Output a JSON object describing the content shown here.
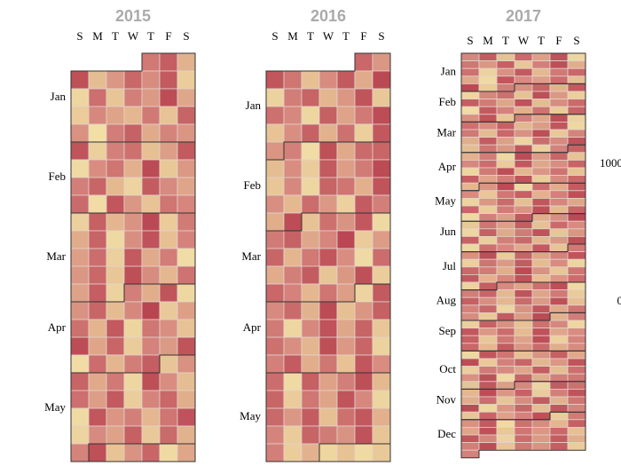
{
  "chart_data": {
    "type": "calendar",
    "weekdays": [
      "S",
      "M",
      "T",
      "W",
      "T",
      "F",
      "S"
    ],
    "months": [
      "Jan",
      "Feb",
      "Mar",
      "Apr",
      "May",
      "Jun",
      "Jul",
      "Aug",
      "Sep",
      "Oct",
      "Nov",
      "Dec"
    ],
    "colors": [
      "#f7f0b0",
      "#e6c093",
      "#d5837c",
      "#b8434f"
    ],
    "colorlim": [
      0,
      1000
    ],
    "colorticks": [
      1000,
      0
    ],
    "years": [
      {
        "year": 2015,
        "values": [
          720,
          860,
          410,
          930,
          350,
          560,
          810,
          620,
          880,
          240,
          180,
          770,
          300,
          690,
          540,
          950,
          470,
          260,
          640,
          490,
          380,
          720,
          310,
          830,
          590,
          120,
          700,
          840,
          450,
          660,
          570,
          910,
          230,
          680,
          760,
          330,
          520,
          880,
          150,
          610,
          740,
          420,
          960,
          280,
          550,
          690,
          820,
          370,
          200,
          870,
          630,
          480,
          790,
          140,
          900,
          560,
          310,
          740,
          650,
          220,
          850,
          390,
          580,
          970,
          260,
          710,
          440,
          830,
          160,
          600,
          920,
          340,
          670,
          510,
          780,
          230,
          880,
          450,
          700,
          130,
          560,
          810,
          290,
          940,
          620,
          380,
          750,
          500,
          860,
          210,
          690,
          430,
          910,
          170,
          580,
          820,
          360,
          640,
          990,
          270,
          510,
          760,
          400,
          880,
          190,
          730,
          600,
          320,
          950,
          480,
          820,
          250,
          670,
          540,
          910,
          140,
          780,
          390,
          700,
          860,
          300,
          590,
          830,
          460,
          720,
          180,
          940,
          610,
          350,
          770,
          520,
          880,
          240,
          660,
          810,
          430,
          150,
          900,
          570,
          690,
          380,
          740,
          920,
          200,
          630,
          500,
          850,
          270,
          790,
          410,
          660,
          930,
          310,
          580,
          820,
          150,
          470
        ]
      },
      {
        "year": 2016,
        "values": [
          810,
          560,
          900,
          740,
          330,
          620,
          880,
          450,
          970,
          210,
          700,
          830,
          390,
          560,
          910,
          280,
          760,
          640,
          180,
          850,
          490,
          720,
          950,
          310,
          600,
          840,
          410,
          760,
          230,
          890,
          570,
          680,
          140,
          930,
          460,
          790,
          820,
          350,
          610,
          250,
          880,
          520,
          710,
          960,
          290,
          640,
          180,
          830,
          740,
          420,
          910,
          600,
          370,
          780,
          550,
          220,
          870,
          690,
          430,
          950,
          320,
          760,
          580,
          890,
          160,
          710,
          840,
          470,
          650,
          980,
          260,
          530,
          820,
          390,
          720,
          900,
          610,
          150,
          780,
          440,
          690,
          870,
          300,
          560,
          930,
          240,
          810,
          670,
          380,
          740,
          520,
          200,
          880,
          630,
          790,
          410,
          960,
          340,
          570,
          850,
          710,
          180,
          640,
          920,
          470,
          830,
          290,
          760,
          600,
          390,
          940,
          550,
          820,
          210,
          680,
          870,
          430,
          730,
          320,
          900,
          610,
          780,
          150,
          850,
          500,
          690,
          940,
          370,
          820,
          260,
          730,
          480,
          910,
          640,
          190,
          800,
          560,
          870,
          340,
          760,
          890,
          420,
          660,
          250,
          830,
          710,
          580,
          920,
          300,
          690,
          240,
          410,
          180,
          320,
          150,
          270
        ]
      },
      {
        "year": 2017,
        "values": [
          640,
          870,
          320,
          790,
          510,
          920,
          180,
          730,
          560,
          850,
          290,
          680,
          940,
          430,
          760,
          210,
          590,
          880,
          370,
          720,
          810,
          460,
          150,
          900,
          630,
          520,
          780,
          340,
          970,
          260,
          700,
          590,
          830,
          410,
          880,
          190,
          650,
          760,
          320,
          940,
          550,
          230,
          860,
          710,
          480,
          920,
          360,
          610,
          790,
          140,
          880,
          670,
          420,
          750,
          260,
          830,
          590,
          910,
          300,
          680,
          470,
          940,
          210,
          760,
          620,
          850,
          380,
          530,
          900,
          170,
          720,
          360,
          810,
          590,
          940,
          280,
          660,
          430,
          870,
          510,
          190,
          780,
          630,
          920,
          350,
          740,
          560,
          890,
          220,
          670,
          840,
          410,
          700,
          160,
          950,
          530,
          820,
          310,
          640,
          780,
          260,
          890,
          470,
          610,
          830,
          180,
          720,
          940,
          390,
          560,
          750,
          320,
          860,
          490,
          700,
          910,
          240,
          630,
          810,
          380,
          570,
          960,
          150,
          780,
          440,
          870,
          620,
          290,
          730,
          850,
          410,
          680,
          930,
          200,
          560,
          790,
          340,
          900,
          650,
          470,
          820,
          250,
          710,
          580,
          940,
          370,
          830,
          160,
          690,
          520,
          880,
          430,
          600,
          970,
          280,
          740,
          510,
          860,
          330,
          790,
          620,
          180,
          850,
          460,
          710,
          920,
          300,
          570,
          840,
          240,
          690,
          800,
          390,
          560,
          930,
          170,
          760,
          640,
          450,
          880,
          310,
          720,
          590,
          940,
          260,
          830,
          480,
          670,
          910,
          220,
          750,
          540,
          870,
          360,
          620,
          190,
          800,
          710,
          430,
          960,
          580,
          290,
          740,
          880,
          410,
          650,
          920,
          330,
          560,
          780,
          200,
          860,
          630,
          490,
          770,
          940,
          150,
          690,
          820,
          370,
          910,
          480,
          720,
          260,
          850,
          600,
          380,
          790,
          540,
          930,
          340,
          670,
          810,
          190,
          580,
          900,
          460,
          740,
          620,
          280,
          870,
          530,
          960,
          410,
          700,
          230,
          840,
          590,
          320,
          760,
          640,
          180,
          890,
          550,
          780,
          360,
          920,
          470,
          610,
          850,
          290,
          730,
          500,
          940,
          220,
          660,
          810,
          380,
          870,
          560,
          790,
          430,
          620,
          170,
          900,
          740,
          330,
          580,
          850,
          460,
          950,
          270,
          680,
          820,
          390,
          560,
          910,
          240,
          710,
          630,
          480,
          860,
          350,
          770,
          590,
          930,
          160,
          820,
          440,
          690,
          730,
          310,
          890,
          520,
          640,
          200,
          870,
          760,
          380,
          950,
          560,
          840,
          250,
          690,
          910,
          430,
          780,
          300,
          620,
          870,
          410,
          740,
          960,
          180,
          570,
          820,
          350,
          900,
          660,
          290,
          830,
          500,
          670,
          940,
          260,
          710,
          590,
          880,
          150,
          760,
          620,
          390,
          850,
          470,
          930,
          280,
          740,
          560,
          810,
          340,
          900,
          650,
          210,
          780,
          540,
          870,
          430,
          690,
          950,
          310,
          720,
          580,
          860,
          240,
          670
        ]
      }
    ]
  }
}
